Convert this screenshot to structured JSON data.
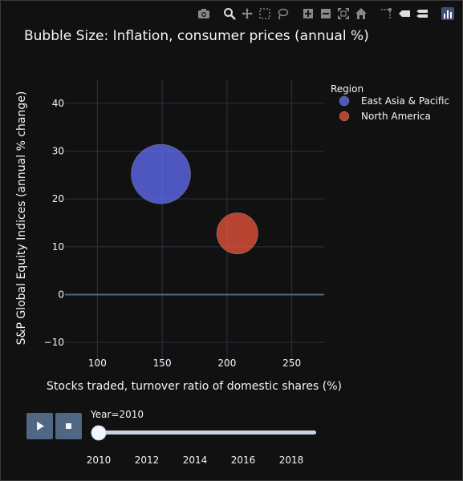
{
  "modebar": {
    "buttons": [
      {
        "name": "camera-icon",
        "label": "Download plot as a png"
      },
      {
        "name": "zoom-icon",
        "label": "Zoom"
      },
      {
        "name": "pan-icon",
        "label": "Pan"
      },
      {
        "name": "box-select-icon",
        "label": "Box Select"
      },
      {
        "name": "lasso-icon",
        "label": "Lasso Select"
      },
      {
        "name": "zoom-in-icon",
        "label": "Zoom in"
      },
      {
        "name": "zoom-out-icon",
        "label": "Zoom out"
      },
      {
        "name": "autoscale-icon",
        "label": "Autoscale"
      },
      {
        "name": "home-icon",
        "label": "Reset axes"
      },
      {
        "name": "spike-lines-icon",
        "label": "Toggle Spike Lines"
      },
      {
        "name": "hover-closest-icon",
        "label": "Show closest data on hover"
      },
      {
        "name": "hover-compare-icon",
        "label": "Compare data on hover"
      },
      {
        "name": "plotly-logo-icon",
        "label": "Produced with Plotly"
      }
    ]
  },
  "chart_data": {
    "type": "scatter",
    "title": "Bubble Size: Inflation, consumer prices (annual %)",
    "xlabel": "Stocks traded, turnover ratio of domestic shares (%)",
    "ylabel": "S&P Global Equity Indices (annual % change)",
    "xlim": [
      75,
      275
    ],
    "ylim": [
      -15,
      45
    ],
    "xticks": [
      100,
      150,
      200,
      250
    ],
    "yticks": [
      -10,
      0,
      10,
      20,
      30,
      40
    ],
    "grid": true,
    "legend_title": "Region",
    "legend_position": "top-right",
    "series": [
      {
        "name": "East Asia & Pacific",
        "color": "#636efa",
        "points": [
          {
            "x": 149,
            "y": 25.2,
            "size": 3.3
          }
        ]
      },
      {
        "name": "North America",
        "color": "#ef553b",
        "points": [
          {
            "x": 208,
            "y": 12.8,
            "size": 1.6
          }
        ]
      }
    ]
  },
  "animation": {
    "current_label": "Year=2010",
    "current_year": 2010,
    "years": [
      2010,
      2012,
      2014,
      2016,
      2018
    ],
    "slider_fraction": 0
  }
}
